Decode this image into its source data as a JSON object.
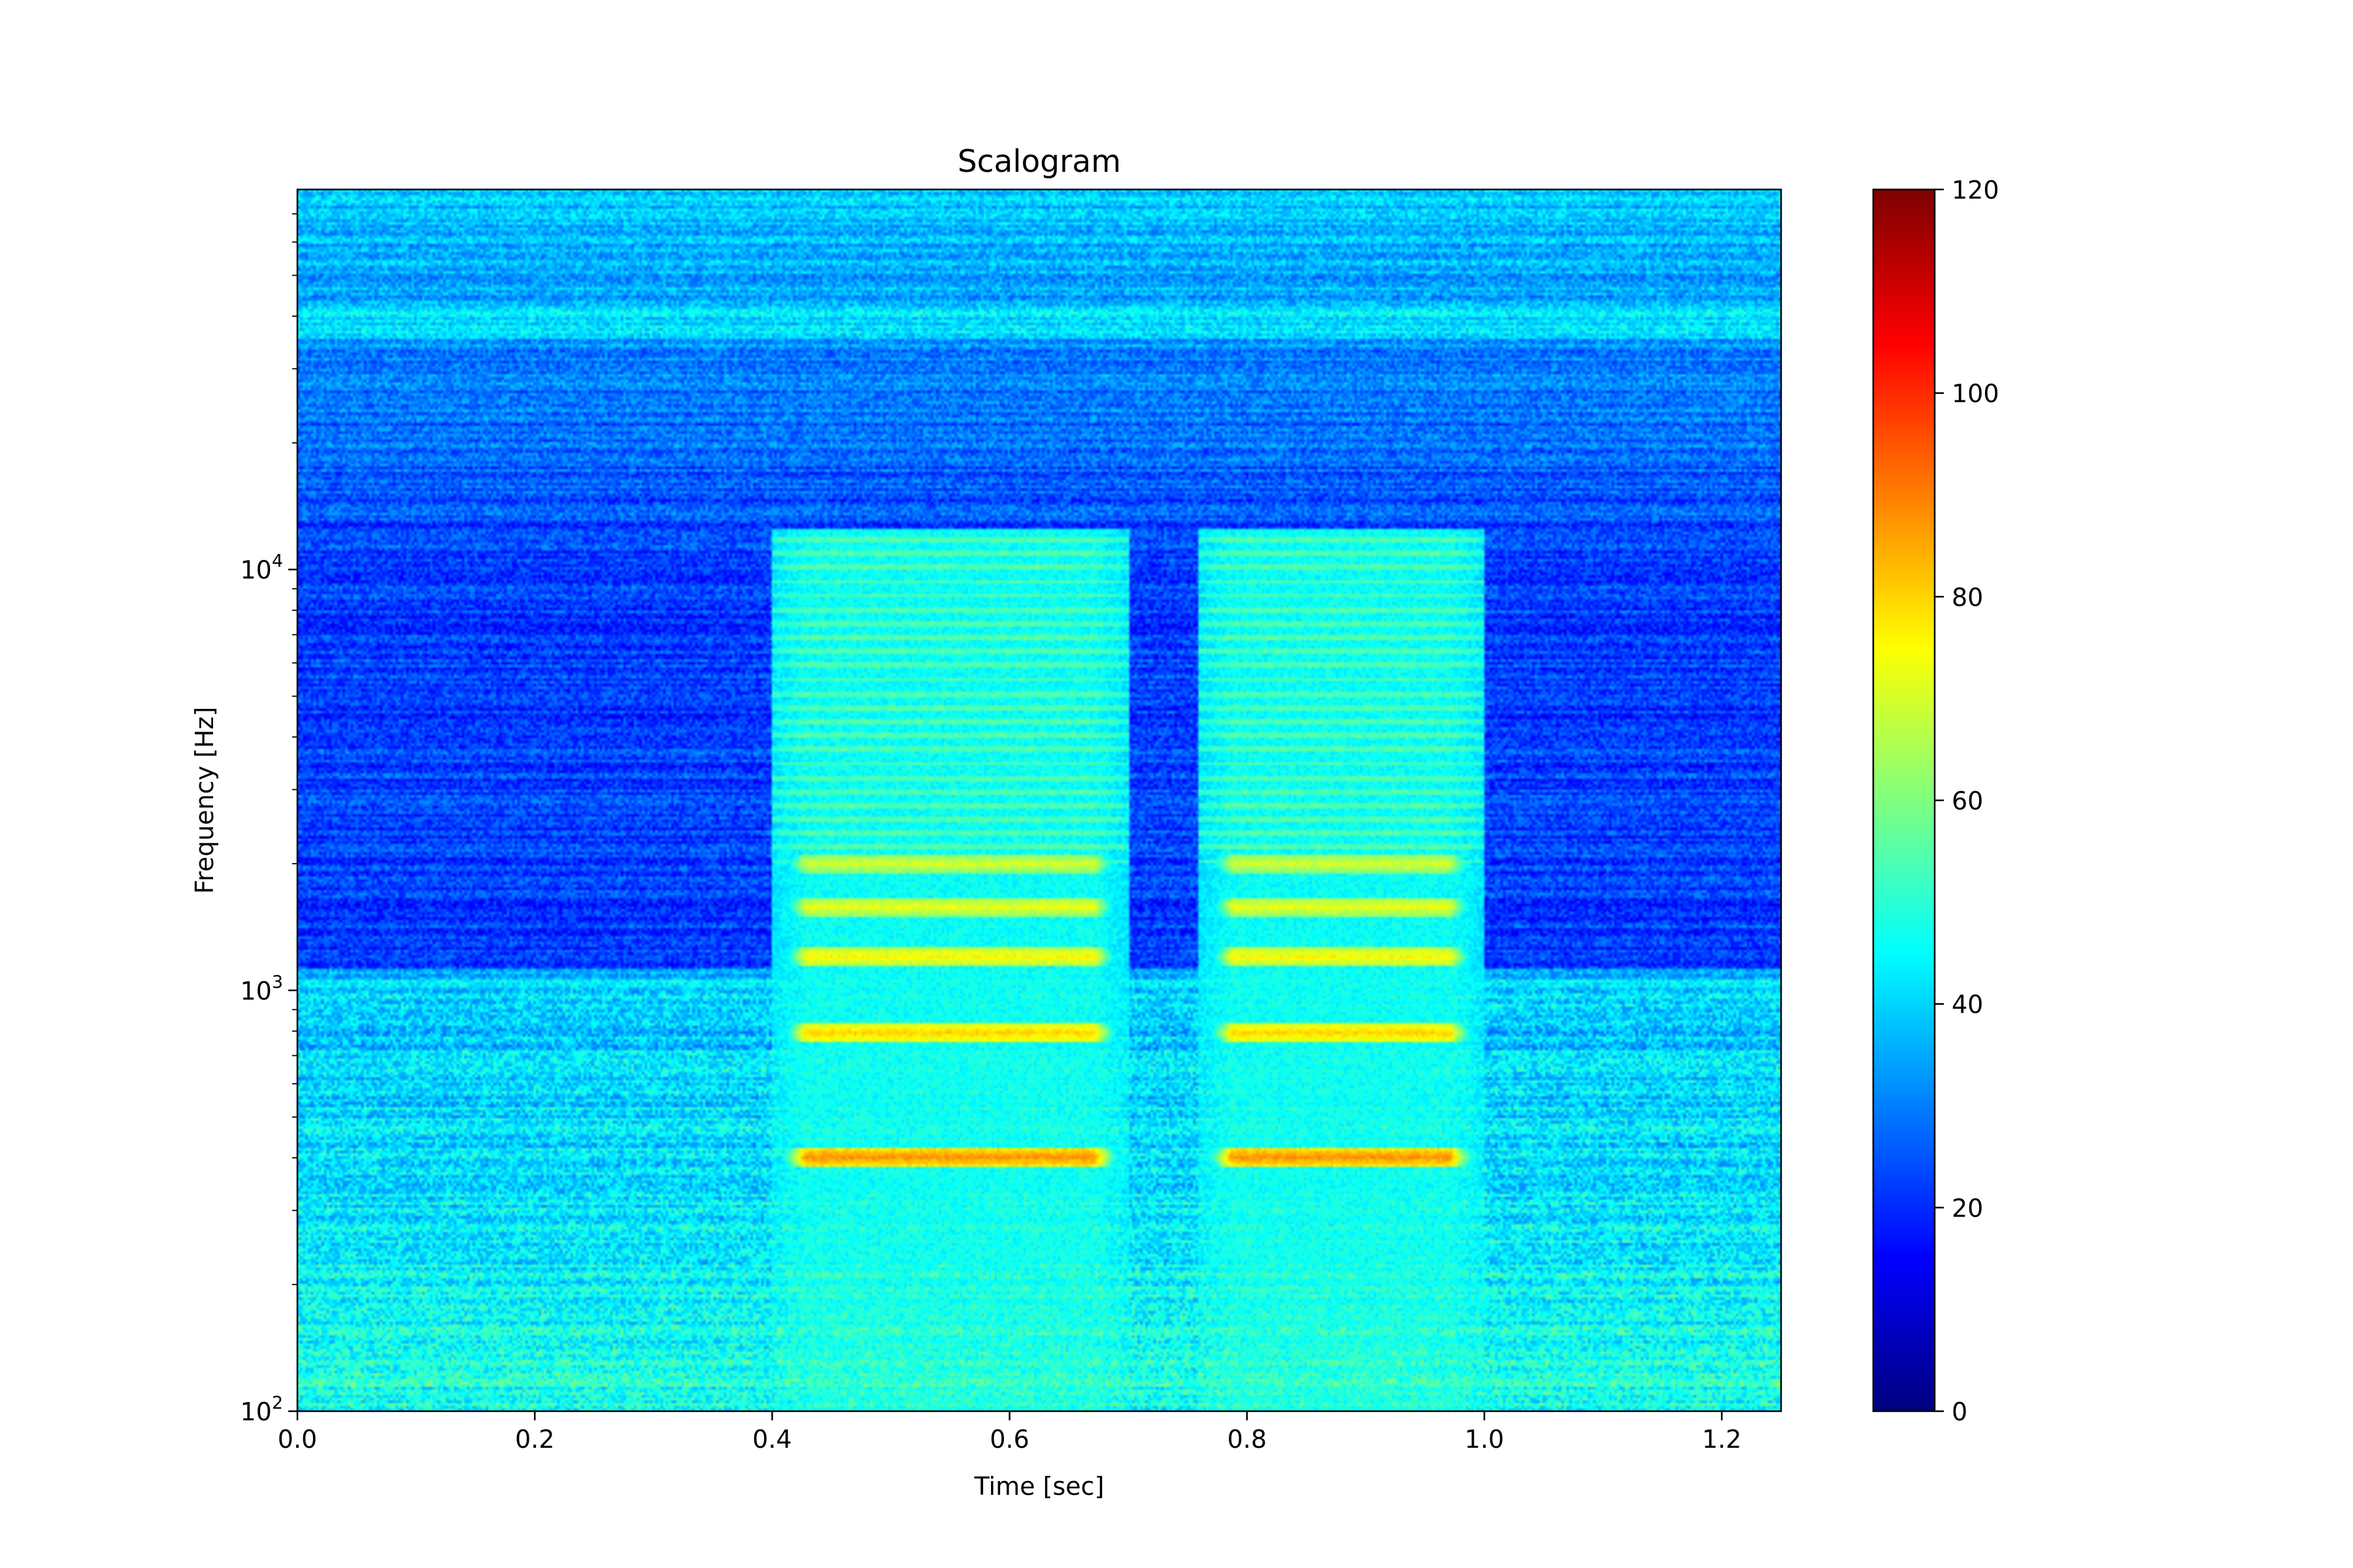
{
  "chart_data": {
    "type": "heatmap",
    "title": "Scalogram",
    "xlabel": "Time [sec]",
    "ylabel": "Frequency [Hz]",
    "xlim": [
      0.0,
      1.25
    ],
    "ylim": [
      100,
      80000
    ],
    "yscale": "log",
    "x_ticks": [
      0.0,
      0.2,
      0.4,
      0.6,
      0.8,
      1.0,
      1.2
    ],
    "x_tick_labels": [
      "0.0",
      "0.2",
      "0.4",
      "0.6",
      "0.8",
      "1.0",
      "1.2"
    ],
    "y_ticks": [
      100,
      1000,
      10000
    ],
    "y_tick_labels": [
      {
        "base": "10",
        "exp": "2"
      },
      {
        "base": "10",
        "exp": "3"
      },
      {
        "base": "10",
        "exp": "4"
      }
    ],
    "colormap": "jet",
    "colorbar": {
      "range": [
        0,
        120
      ],
      "ticks": [
        0,
        20,
        40,
        60,
        80,
        100,
        120
      ],
      "tick_labels": [
        "0",
        "20",
        "40",
        "60",
        "80",
        "100",
        "120"
      ]
    },
    "grid": false,
    "features": {
      "background_low_band_db": 48,
      "background_mid_band_db": 22,
      "background_high_band_db": 38,
      "horizontal_band_hz": 40000,
      "voiced_segments": [
        {
          "start": 0.4,
          "end": 0.7,
          "harmonics_hz": [
            400,
            790,
            1200,
            1580,
            2000
          ],
          "peak_db": 88
        },
        {
          "start": 0.76,
          "end": 1.0,
          "harmonics_hz": [
            400,
            790,
            1200,
            1580,
            2000
          ],
          "peak_db": 88
        }
      ]
    }
  }
}
